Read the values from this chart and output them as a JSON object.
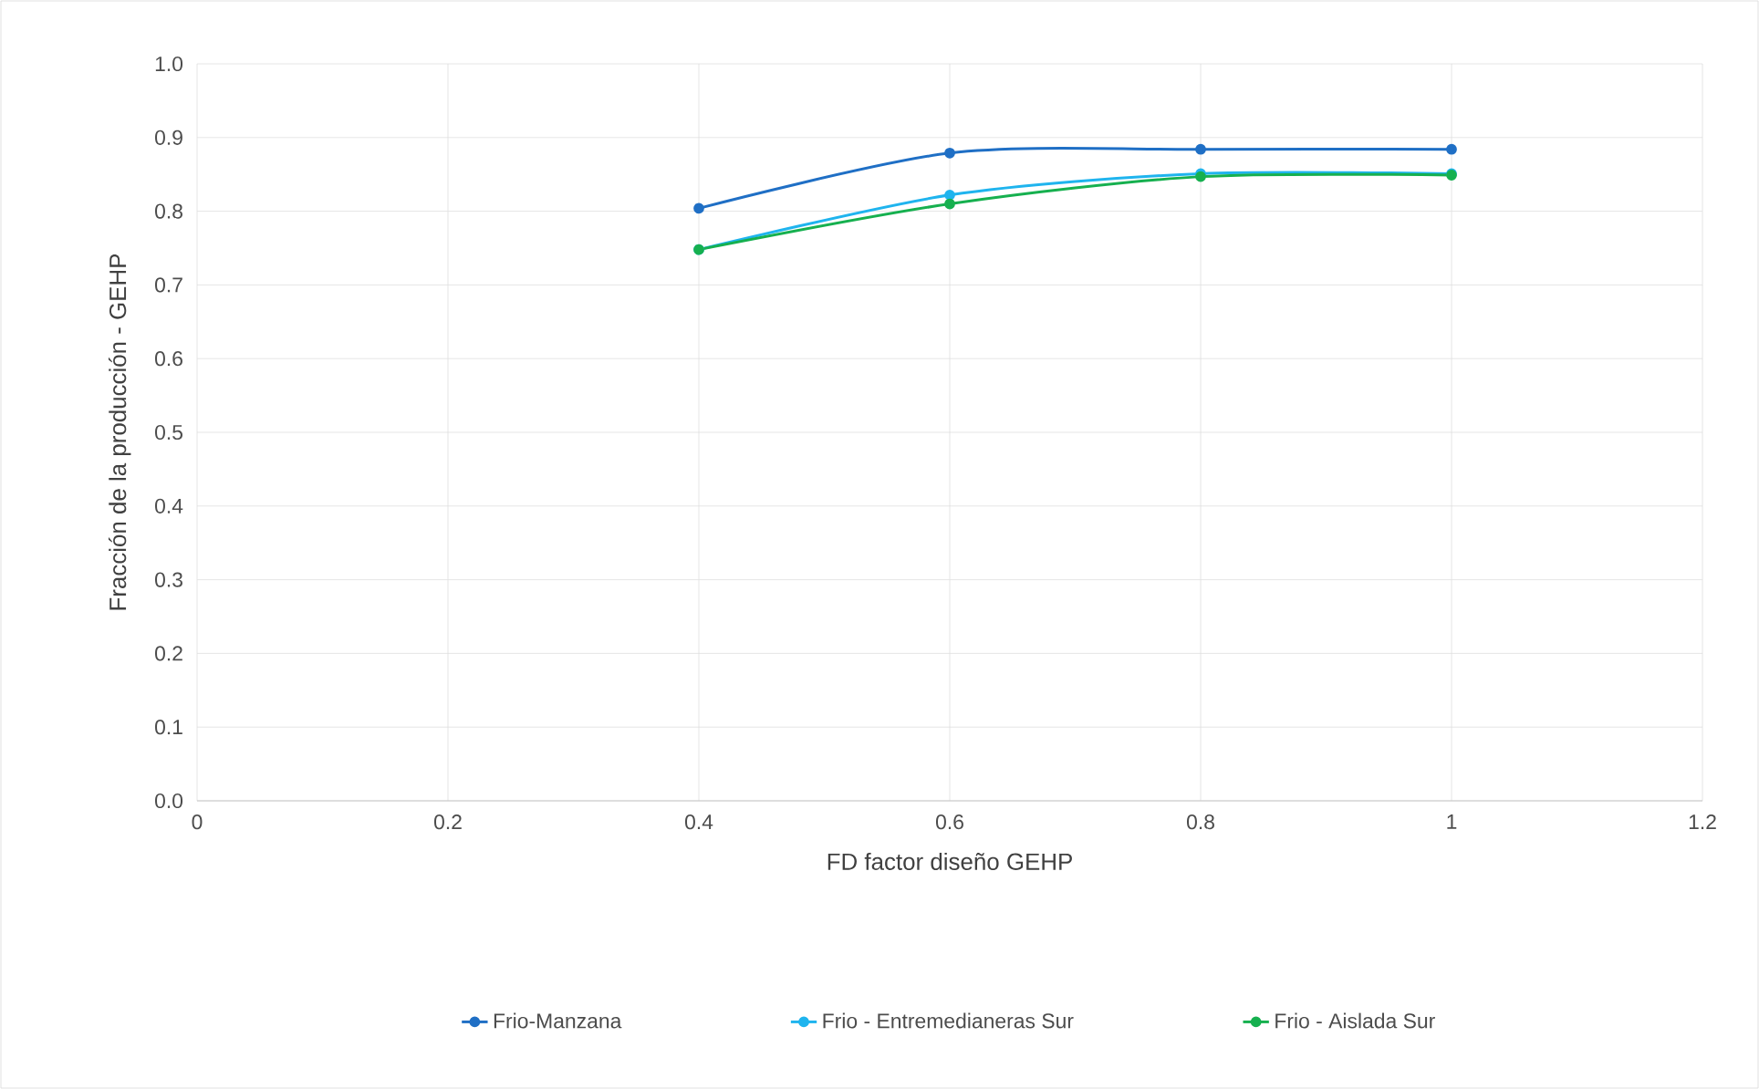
{
  "chart_data": {
    "type": "line",
    "xlabel": "FD factor diseño GEHP",
    "ylabel": "Fracción de la producción - GEHP",
    "x": [
      0.4,
      0.6,
      0.8,
      1.0
    ],
    "series": [
      {
        "name": "Frio-Manzana",
        "color": "#1f6fc5",
        "values": [
          0.804,
          0.879,
          0.884,
          0.884
        ]
      },
      {
        "name": "Frio - Entremedianeras Sur",
        "color": "#1fb4ee",
        "values": [
          0.748,
          0.822,
          0.851,
          0.851
        ]
      },
      {
        "name": "Frio - Aislada Sur",
        "color": "#16b04f",
        "values": [
          0.748,
          0.81,
          0.847,
          0.849
        ]
      }
    ],
    "xlim": [
      0,
      1.2
    ],
    "xticks": [
      0,
      0.2,
      0.4,
      0.6,
      0.8,
      1,
      1.2
    ],
    "ylim": [
      0,
      1.0
    ],
    "yticks": [
      {
        "value": 0,
        "label": "0.0"
      },
      0.1,
      0.2,
      0.3,
      0.4,
      0.5,
      0.6,
      0.7,
      0.8,
      0.9,
      {
        "value": 1.0,
        "label": "1.0"
      }
    ],
    "grid": true,
    "legend": "bottom",
    "marker": "circle",
    "line_style": "solid"
  }
}
